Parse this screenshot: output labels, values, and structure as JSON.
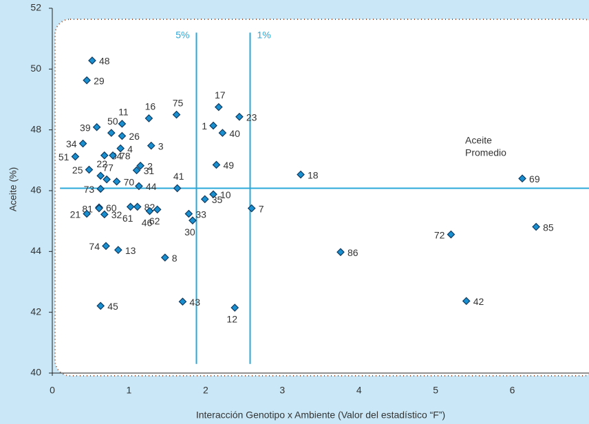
{
  "chart_data": {
    "type": "scatter",
    "xlabel": "Interacción Genotipo x Ambiente (Valor del estadístico “F”)",
    "ylabel": "Aceite (%)",
    "xlim": [
      0,
      7
    ],
    "ylim": [
      40,
      52
    ],
    "xticks": [
      0,
      1,
      2,
      3,
      4,
      5,
      6
    ],
    "yticks": [
      40,
      42,
      44,
      46,
      48,
      50,
      52
    ],
    "color": "#1a8fd0",
    "line_color": "#2aa8d8",
    "labels": [
      "48",
      "29",
      "16",
      "75",
      "11",
      "39",
      "50",
      "26",
      "17",
      "23",
      "1",
      "40",
      "34",
      "3",
      "4",
      "84",
      "78",
      "51",
      "2",
      "31",
      "49",
      "25",
      "22",
      "77",
      "70",
      "73",
      "44",
      "41",
      "18",
      "69",
      "10",
      "35",
      "60",
      "81",
      "21",
      "32",
      "61",
      "82",
      "46",
      "62",
      "33",
      "30",
      "7",
      "72",
      "85",
      "86",
      "74",
      "13",
      "8",
      "43",
      "12",
      "45",
      "42"
    ],
    "x": [
      0.52,
      0.45,
      1.26,
      1.62,
      0.91,
      0.58,
      0.77,
      0.91,
      2.17,
      2.44,
      2.1,
      2.22,
      0.4,
      1.29,
      0.89,
      0.68,
      0.79,
      0.3,
      1.15,
      1.1,
      2.14,
      0.48,
      0.63,
      0.71,
      0.84,
      0.63,
      1.13,
      1.63,
      3.24,
      6.13,
      2.1,
      1.99,
      0.61,
      0.61,
      0.45,
      0.68,
      1.02,
      1.11,
      1.27,
      1.37,
      1.78,
      1.83,
      2.6,
      5.2,
      6.31,
      3.76,
      0.7,
      0.86,
      1.47,
      1.7,
      2.38,
      0.63,
      5.4
    ],
    "y": [
      50.28,
      49.63,
      48.38,
      48.5,
      48.2,
      48.09,
      47.9,
      47.8,
      48.75,
      48.43,
      48.14,
      47.9,
      47.55,
      47.48,
      47.39,
      47.16,
      47.16,
      47.12,
      46.82,
      46.67,
      46.85,
      46.69,
      46.49,
      46.37,
      46.3,
      46.06,
      46.15,
      46.08,
      46.53,
      46.4,
      45.88,
      45.72,
      45.45,
      45.42,
      45.24,
      45.22,
      45.47,
      45.47,
      45.33,
      45.38,
      45.24,
      45.02,
      45.42,
      44.56,
      44.81,
      43.98,
      44.18,
      44.05,
      43.8,
      42.35,
      42.15,
      42.21,
      42.37
    ],
    "reference_lines": [
      {
        "axis": "x",
        "value": 1.88,
        "label": "5%"
      },
      {
        "axis": "x",
        "value": 2.58,
        "label": "1%"
      },
      {
        "axis": "y",
        "value": 46.08
      }
    ],
    "annotation": [
      "Aceite",
      "Promedio"
    ]
  }
}
